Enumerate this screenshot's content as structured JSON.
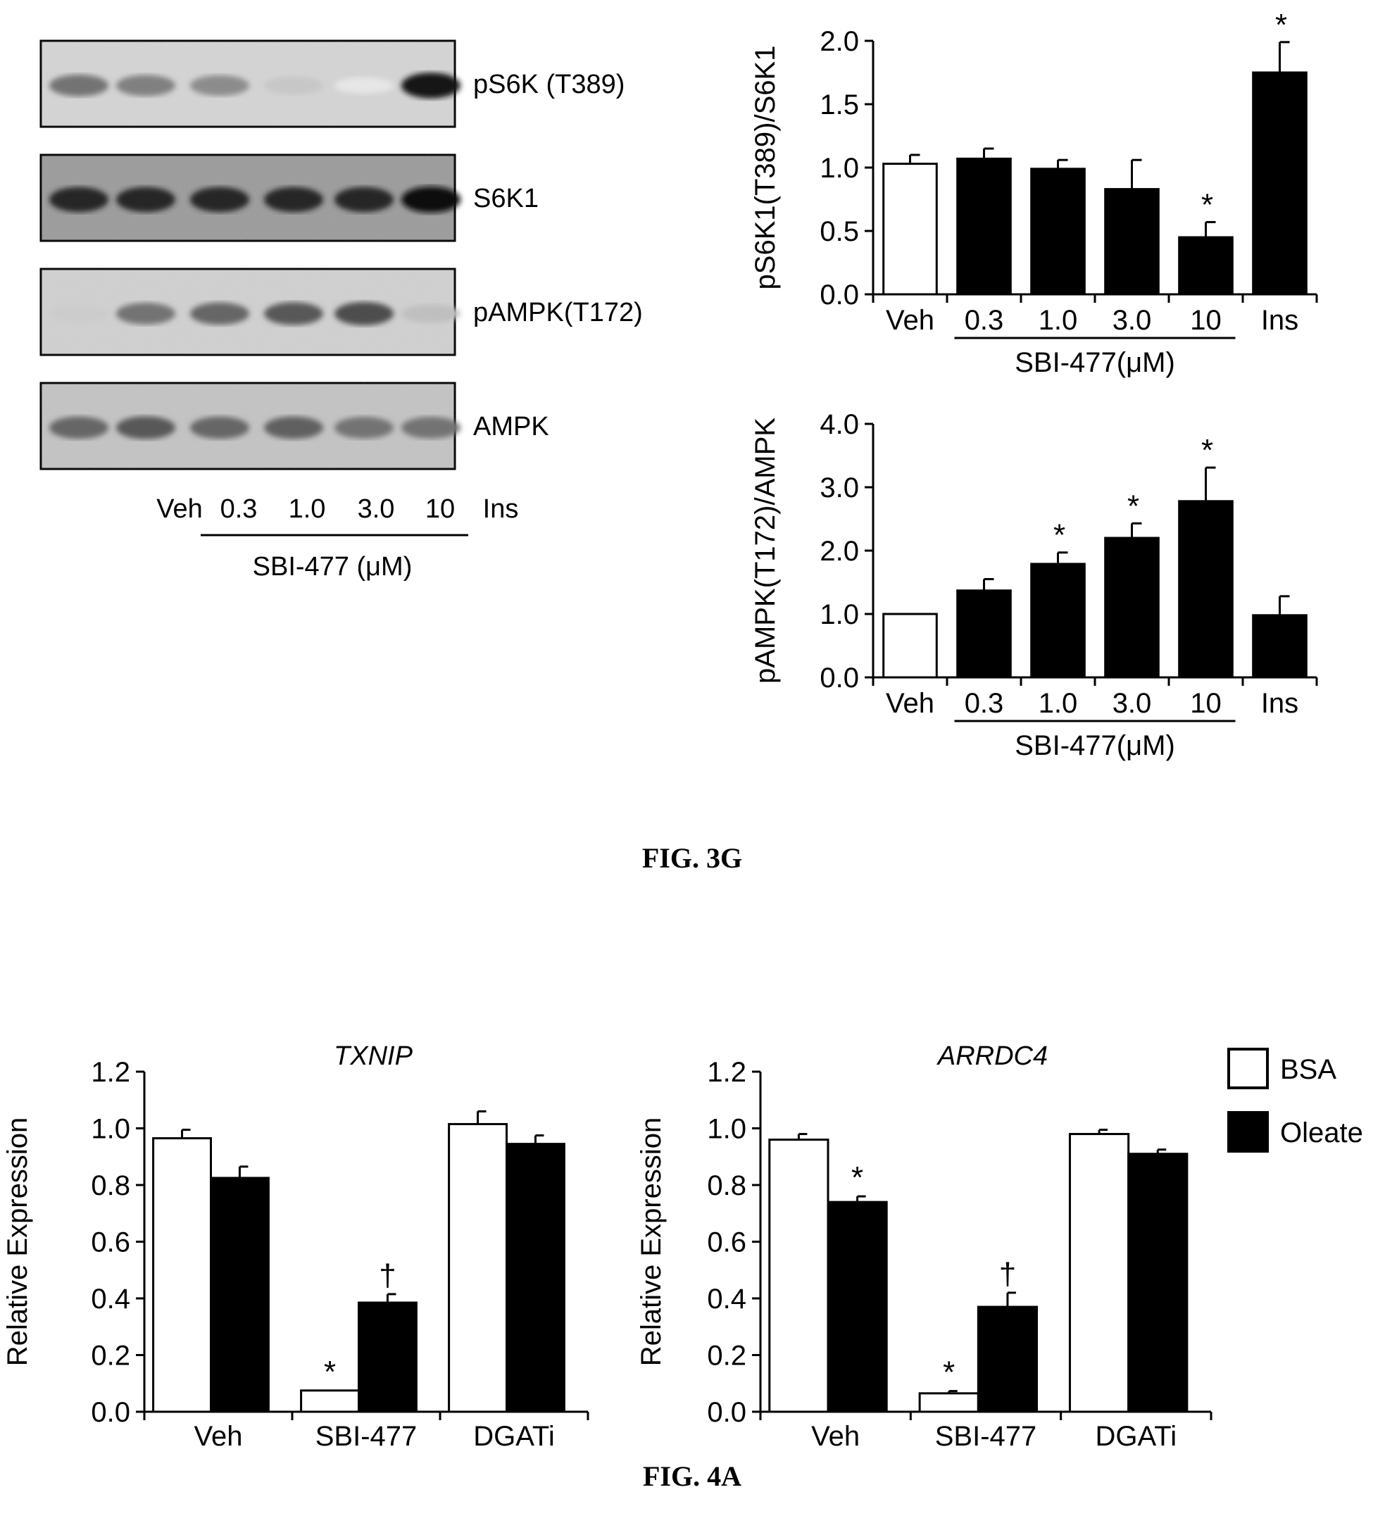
{
  "figure_3g": {
    "caption": "FIG. 3G",
    "blot": {
      "rows": [
        {
          "label": "pS6K (T389)",
          "intensities": [
            0.55,
            0.5,
            0.45,
            0.22,
            0.1,
            0.9
          ],
          "bg": "#d6d6d6"
        },
        {
          "label": "S6K1",
          "intensities": [
            0.85,
            0.85,
            0.85,
            0.85,
            0.85,
            0.95
          ],
          "bg": "#9a9a9a"
        },
        {
          "label": "pAMPK(T172)",
          "intensities": [
            0.2,
            0.55,
            0.6,
            0.65,
            0.7,
            0.25
          ],
          "bg": "#d2d2d2"
        },
        {
          "label": "AMPK",
          "intensities": [
            0.6,
            0.65,
            0.6,
            0.62,
            0.55,
            0.55
          ],
          "bg": "#c4c4c4"
        }
      ],
      "lanes": [
        "Veh",
        "0.3",
        "1.0",
        "3.0",
        "10",
        "Ins"
      ],
      "treatment": "SBI-477 (μM)"
    }
  },
  "figure_4a": {
    "caption": "FIG. 4A",
    "legend": [
      {
        "label": "BSA",
        "color": "#ffffff"
      },
      {
        "label": "Oleate",
        "color": "#000000"
      }
    ]
  },
  "chart_data": [
    {
      "type": "bar",
      "ylabel": "pS6K1(T389)/S6K1",
      "categories": [
        "Veh",
        "0.3",
        "1.0",
        "3.0",
        "10",
        "Ins"
      ],
      "values": [
        1.03,
        1.07,
        0.99,
        0.83,
        0.45,
        1.75
      ],
      "errors": [
        0.07,
        0.08,
        0.07,
        0.23,
        0.12,
        0.24
      ],
      "colors": [
        "#ffffff",
        "#000000",
        "#000000",
        "#000000",
        "#000000",
        "#000000"
      ],
      "significance": [
        "",
        "",
        "",
        "",
        "*",
        "*"
      ],
      "ylim": [
        0,
        2.0
      ],
      "yticks": [
        "0.0",
        "0.5",
        "1.0",
        "1.5",
        "2.0"
      ],
      "group_label": "SBI-477(μM)"
    },
    {
      "type": "bar",
      "ylabel": "pAMPK(T172)/AMPK",
      "categories": [
        "Veh",
        "0.3",
        "1.0",
        "3.0",
        "10",
        "Ins"
      ],
      "values": [
        1.0,
        1.37,
        1.79,
        2.2,
        2.78,
        0.98
      ],
      "errors": [
        0.0,
        0.18,
        0.18,
        0.23,
        0.53,
        0.3
      ],
      "colors": [
        "#ffffff",
        "#000000",
        "#000000",
        "#000000",
        "#000000",
        "#000000"
      ],
      "significance": [
        "",
        "",
        "*",
        "*",
        "*",
        ""
      ],
      "ylim": [
        0,
        4.0
      ],
      "yticks": [
        "0.0",
        "1.0",
        "2.0",
        "3.0",
        "4.0"
      ],
      "group_label": "SBI-477(μM)"
    },
    {
      "type": "bar",
      "title": "TXNIP",
      "ylabel": "Relative Expression",
      "categories": [
        "Veh",
        "SBI-477",
        "DGATi"
      ],
      "series": [
        {
          "name": "BSA",
          "color": "#ffffff",
          "values": [
            0.965,
            0.075,
            1.015
          ],
          "errors": [
            0.03,
            0.0,
            0.045
          ],
          "significance": [
            "",
            "*",
            ""
          ]
        },
        {
          "name": "Oleate",
          "color": "#000000",
          "values": [
            0.825,
            0.385,
            0.945
          ],
          "errors": [
            0.04,
            0.03,
            0.03
          ],
          "significance": [
            "",
            "†",
            ""
          ]
        }
      ],
      "ylim": [
        0,
        1.2
      ],
      "yticks": [
        "0.0",
        "0.2",
        "0.4",
        "0.6",
        "0.8",
        "1.0",
        "1.2"
      ]
    },
    {
      "type": "bar",
      "title": "ARRDC4",
      "ylabel": "Relative Expression",
      "categories": [
        "Veh",
        "SBI-477",
        "DGATi"
      ],
      "series": [
        {
          "name": "BSA",
          "color": "#ffffff",
          "values": [
            0.96,
            0.065,
            0.98
          ],
          "errors": [
            0.02,
            0.008,
            0.015
          ],
          "significance": [
            "",
            "*",
            ""
          ]
        },
        {
          "name": "Oleate",
          "color": "#000000",
          "values": [
            0.74,
            0.37,
            0.91
          ],
          "errors": [
            0.02,
            0.05,
            0.015
          ],
          "significance": [
            "*",
            "†",
            ""
          ]
        }
      ],
      "ylim": [
        0,
        1.2
      ],
      "yticks": [
        "0.0",
        "0.2",
        "0.4",
        "0.6",
        "0.8",
        "1.0",
        "1.2"
      ]
    }
  ]
}
